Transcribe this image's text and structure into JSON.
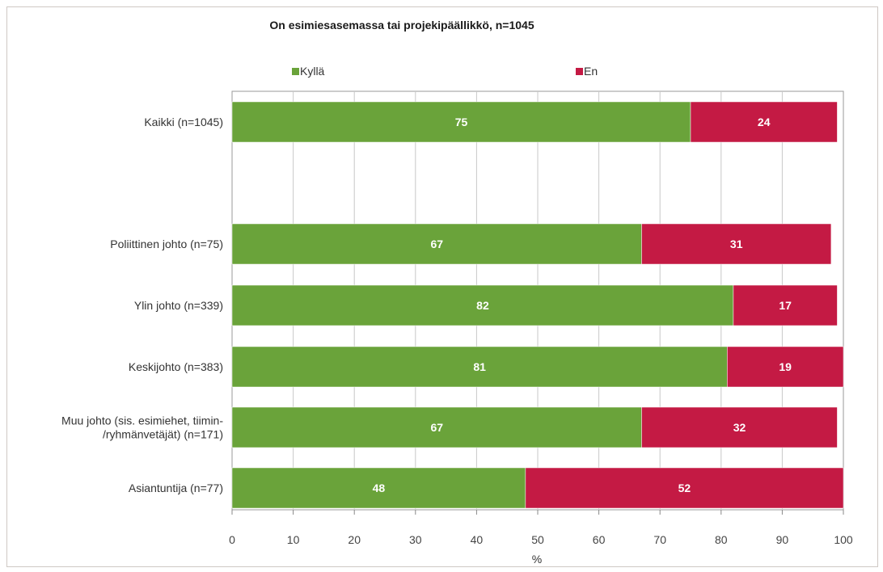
{
  "chart_data": {
    "type": "bar",
    "orientation": "horizontal",
    "stacked": true,
    "title": "On esimiesasemassa tai projekipäällikkö, n=1045",
    "xlabel": "%",
    "xlim": [
      0,
      100
    ],
    "xticks": [
      0,
      10,
      20,
      30,
      40,
      50,
      60,
      70,
      80,
      90,
      100
    ],
    "grid": "vertical",
    "legend_position": "top",
    "categories": [
      [
        "Kaikki (n=1045)"
      ],
      [],
      [
        "Poliittinen johto (n=75)"
      ],
      [
        "Ylin johto (n=339)"
      ],
      [
        "Keskijohto (n=383)"
      ],
      [
        "Muu johto (sis. esimiehet, tiimin-",
        "/ryhmänvetäjät) (n=171)"
      ],
      [
        "Asiantuntija (n=77)"
      ]
    ],
    "series": [
      {
        "name": "Kyllä",
        "color": "#6aa33a",
        "values": [
          75,
          null,
          67,
          82,
          81,
          67,
          48
        ]
      },
      {
        "name": "En",
        "color": "#c41a44",
        "values": [
          24,
          null,
          31,
          17,
          19,
          32,
          52
        ]
      }
    ]
  }
}
